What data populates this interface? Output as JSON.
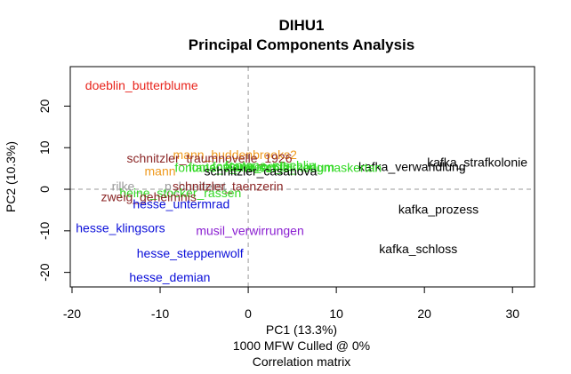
{
  "chart_data": {
    "type": "scatter",
    "title": "DIHU1",
    "subtitle": "Principal Components Analysis",
    "xlabel": "PC1 (13.3%)",
    "ylabel": "PC2 (10.3%)",
    "footer": [
      "1000 MFW  Culled @ 0%",
      "Correlation matrix"
    ],
    "xlim": [
      -20.2,
      32.5
    ],
    "ylim": [
      -23.5,
      29.5
    ],
    "xticks": [
      -20,
      -10,
      0,
      10,
      20,
      30
    ],
    "yticks": [
      -20,
      -10,
      0,
      10,
      20
    ],
    "reference_lines": {
      "x": 0,
      "y": 0,
      "style": "dashed",
      "color": "#999999"
    },
    "points": [
      {
        "label": "doeblin_butterblume",
        "x": -12.1,
        "y": 25.0,
        "color": "#e8241c"
      },
      {
        "label": "mann_buddenbrooks2",
        "x": -1.5,
        "y": 8.3,
        "color": "#ef9a1e"
      },
      {
        "label": "schnitzler_traumnovelle_1926",
        "x": -4.4,
        "y": 7.5,
        "color": "#8b2626"
      },
      {
        "label": "kafka_strafkolonie",
        "x": 26.0,
        "y": 6.5,
        "color": "#000000"
      },
      {
        "label": "fontane_stechlin",
        "x": 2.5,
        "y": 5.8,
        "color": "#32d924"
      },
      {
        "label": "fontane_cecile",
        "x": 0.5,
        "y": 5.6,
        "color": "#32d924"
      },
      {
        "label": "fontane_unterm_birnbaum",
        "x": 1.5,
        "y": 5.4,
        "color": "#32d924"
      },
      {
        "label": "kafka_verwandlung",
        "x": 18.6,
        "y": 5.5,
        "color": "#000000"
      },
      {
        "label": "fontane_vierwuechte_kerlgmaskertan",
        "x": 3.4,
        "y": 5.2,
        "color": "#32d924"
      },
      {
        "label": "mann",
        "x": -10.0,
        "y": 4.4,
        "color": "#ef9a1e"
      },
      {
        "label": "schnitzler_casanova",
        "x": 1.4,
        "y": 4.4,
        "color": "#000000"
      },
      {
        "label": "rilke_",
        "x": -13.8,
        "y": 0.8,
        "color": "#9a9a9a"
      },
      {
        "label": "p_huetlerst",
        "x": -6.0,
        "y": 0.8,
        "color": "#9a9a9a"
      },
      {
        "label": "schnitzler_taenzerin",
        "x": -2.3,
        "y": 0.8,
        "color": "#8b2626"
      },
      {
        "label": "heine_stocker_rassen",
        "x": -7.7,
        "y": -0.8,
        "color": "#32d924"
      },
      {
        "label": "zweig_geheimnis",
        "x": -11.3,
        "y": -1.8,
        "color": "#8b2626"
      },
      {
        "label": "hesse_untermrad",
        "x": -7.6,
        "y": -3.5,
        "color": "#0b0fd9"
      },
      {
        "label": "kafka_prozess",
        "x": 21.6,
        "y": -4.8,
        "color": "#000000"
      },
      {
        "label": "hesse_klingsors",
        "x": -14.5,
        "y": -9.3,
        "color": "#0b0fd9"
      },
      {
        "label": "musil_verwirrungen",
        "x": 0.2,
        "y": -9.9,
        "color": "#8a1ed1"
      },
      {
        "label": "kafka_schloss",
        "x": 19.3,
        "y": -14.3,
        "color": "#000000"
      },
      {
        "label": "hesse_steppenwolf",
        "x": -6.6,
        "y": -15.4,
        "color": "#0b0fd9"
      },
      {
        "label": "hesse_demian",
        "x": -8.9,
        "y": -21.1,
        "color": "#0b0fd9"
      }
    ]
  }
}
